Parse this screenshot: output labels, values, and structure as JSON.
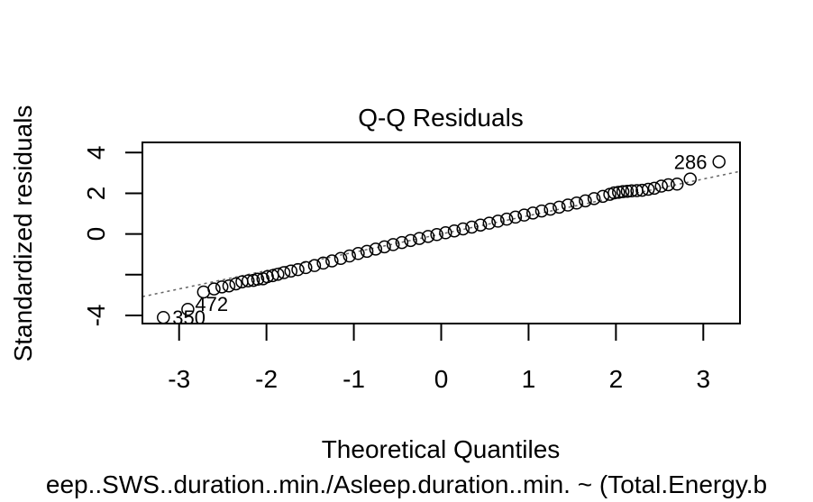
{
  "chart_data": {
    "type": "scatter",
    "title": "Q-Q Residuals",
    "xlabel": "Theoretical Quantiles",
    "ylabel": "Standardized residuals",
    "subtitle": "eep..SWS..duration..min./Asleep.duration..min. ~ (Total.Energy.b",
    "xlim": [
      -3.42,
      3.42
    ],
    "ylim": [
      -4.4,
      4.5
    ],
    "x_ticks": [
      -3,
      -2,
      -1,
      0,
      1,
      2,
      3
    ],
    "x_tick_labels": [
      "-3",
      "-2",
      "-1",
      "0",
      "1",
      "2",
      "3"
    ],
    "y_ticks": [
      -4,
      -2,
      0,
      2,
      4
    ],
    "y_tick_labels": [
      "-4",
      "",
      "0",
      "2",
      "4"
    ],
    "grid": false,
    "reference_line": {
      "slope": 0.9,
      "intercept": 0.0,
      "style": "dotted"
    },
    "point_labels": [
      {
        "text": "286",
        "x": 3.18,
        "y": 3.55
      },
      {
        "text": "472",
        "x": -2.9,
        "y": -3.7
      },
      {
        "text": "350",
        "x": -3.18,
        "y": -4.1
      }
    ],
    "points": [
      [
        -3.18,
        -4.1
      ],
      [
        -2.9,
        -3.7
      ],
      [
        -2.72,
        -2.85
      ],
      [
        -2.6,
        -2.7
      ],
      [
        -2.51,
        -2.6
      ],
      [
        -2.43,
        -2.55
      ],
      [
        -2.35,
        -2.45
      ],
      [
        -2.28,
        -2.35
      ],
      [
        -2.21,
        -2.3
      ],
      [
        -2.15,
        -2.28
      ],
      [
        -2.1,
        -2.22
      ],
      [
        -2.04,
        -2.2
      ],
      [
        -1.99,
        -2.1
      ],
      [
        -1.93,
        -2.05
      ],
      [
        -1.87,
        -1.98
      ],
      [
        -1.8,
        -1.9
      ],
      [
        -1.72,
        -1.82
      ],
      [
        -1.64,
        -1.75
      ],
      [
        -1.55,
        -1.65
      ],
      [
        -1.45,
        -1.55
      ],
      [
        -1.35,
        -1.43
      ],
      [
        -1.25,
        -1.32
      ],
      [
        -1.15,
        -1.2
      ],
      [
        -1.05,
        -1.08
      ],
      [
        -0.95,
        -0.96
      ],
      [
        -0.85,
        -0.85
      ],
      [
        -0.75,
        -0.74
      ],
      [
        -0.65,
        -0.63
      ],
      [
        -0.55,
        -0.52
      ],
      [
        -0.45,
        -0.42
      ],
      [
        -0.35,
        -0.32
      ],
      [
        -0.25,
        -0.22
      ],
      [
        -0.15,
        -0.12
      ],
      [
        -0.05,
        -0.03
      ],
      [
        0.05,
        0.06
      ],
      [
        0.15,
        0.15
      ],
      [
        0.25,
        0.25
      ],
      [
        0.35,
        0.34
      ],
      [
        0.45,
        0.44
      ],
      [
        0.55,
        0.53
      ],
      [
        0.65,
        0.63
      ],
      [
        0.75,
        0.73
      ],
      [
        0.85,
        0.83
      ],
      [
        0.95,
        0.93
      ],
      [
        1.05,
        1.03
      ],
      [
        1.15,
        1.13
      ],
      [
        1.25,
        1.22
      ],
      [
        1.35,
        1.32
      ],
      [
        1.45,
        1.42
      ],
      [
        1.55,
        1.52
      ],
      [
        1.65,
        1.63
      ],
      [
        1.75,
        1.74
      ],
      [
        1.85,
        1.85
      ],
      [
        1.93,
        1.95
      ],
      [
        1.98,
        2.02
      ],
      [
        2.03,
        2.05
      ],
      [
        2.08,
        2.08
      ],
      [
        2.13,
        2.1
      ],
      [
        2.18,
        2.12
      ],
      [
        2.24,
        2.13
      ],
      [
        2.3,
        2.15
      ],
      [
        2.37,
        2.2
      ],
      [
        2.44,
        2.25
      ],
      [
        2.52,
        2.35
      ],
      [
        2.6,
        2.42
      ],
      [
        2.7,
        2.45
      ],
      [
        2.85,
        2.7
      ],
      [
        3.18,
        3.55
      ]
    ]
  }
}
